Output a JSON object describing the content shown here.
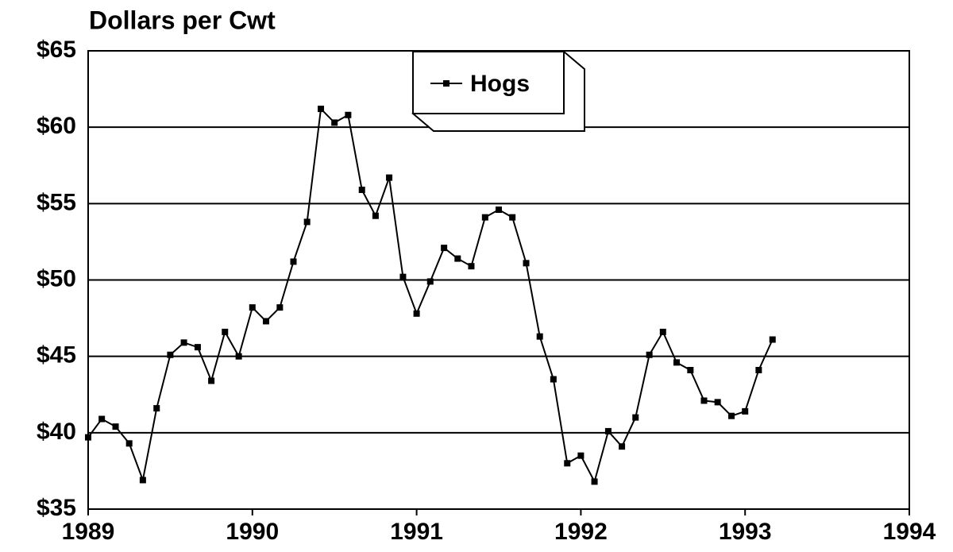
{
  "chart_data": {
    "type": "line",
    "title": "Dollars per Cwt",
    "x": [
      1989,
      1989.083,
      1989.167,
      1989.25,
      1989.333,
      1989.417,
      1989.5,
      1989.583,
      1989.667,
      1989.75,
      1989.833,
      1989.917,
      1990,
      1990.083,
      1990.167,
      1990.25,
      1990.333,
      1990.417,
      1990.5,
      1990.583,
      1990.667,
      1990.75,
      1990.833,
      1990.917,
      1991,
      1991.083,
      1991.167,
      1991.25,
      1991.333,
      1991.417,
      1991.5,
      1991.583,
      1991.667,
      1991.75,
      1991.833,
      1991.917,
      1992,
      1992.083,
      1992.167,
      1992.25,
      1992.333,
      1992.417,
      1992.5,
      1992.583,
      1992.667,
      1992.75,
      1992.833,
      1992.917,
      1993,
      1993.083,
      1993.167
    ],
    "series": [
      {
        "name": "Hogs",
        "color": "#000000",
        "values": [
          39.7,
          40.9,
          40.4,
          39.3,
          36.9,
          41.6,
          45.1,
          45.9,
          45.6,
          43.4,
          46.6,
          45.0,
          48.2,
          47.3,
          48.2,
          51.2,
          53.8,
          61.2,
          60.3,
          60.8,
          55.9,
          54.2,
          56.7,
          50.2,
          47.8,
          49.9,
          52.1,
          51.4,
          50.9,
          54.1,
          54.6,
          54.1,
          51.1,
          46.3,
          43.5,
          38.0,
          38.5,
          36.8,
          40.1,
          39.1,
          41.0,
          45.1,
          46.6,
          44.6,
          44.1,
          42.1,
          42.0,
          41.1,
          41.4,
          44.1,
          46.1
        ]
      }
    ],
    "xlim": [
      1989,
      1994
    ],
    "xticks": [
      1989,
      1990,
      1991,
      1992,
      1993,
      1994
    ],
    "ylim": [
      35,
      65
    ],
    "yticks": [
      {
        "value": 35,
        "label": "$35"
      },
      {
        "value": 40,
        "label": "$40"
      },
      {
        "value": 45,
        "label": "$45"
      },
      {
        "value": 50,
        "label": "$50"
      },
      {
        "value": 55,
        "label": "$55"
      },
      {
        "value": 60,
        "label": "$60"
      },
      {
        "value": 65,
        "label": "$65"
      }
    ],
    "grid": true
  }
}
